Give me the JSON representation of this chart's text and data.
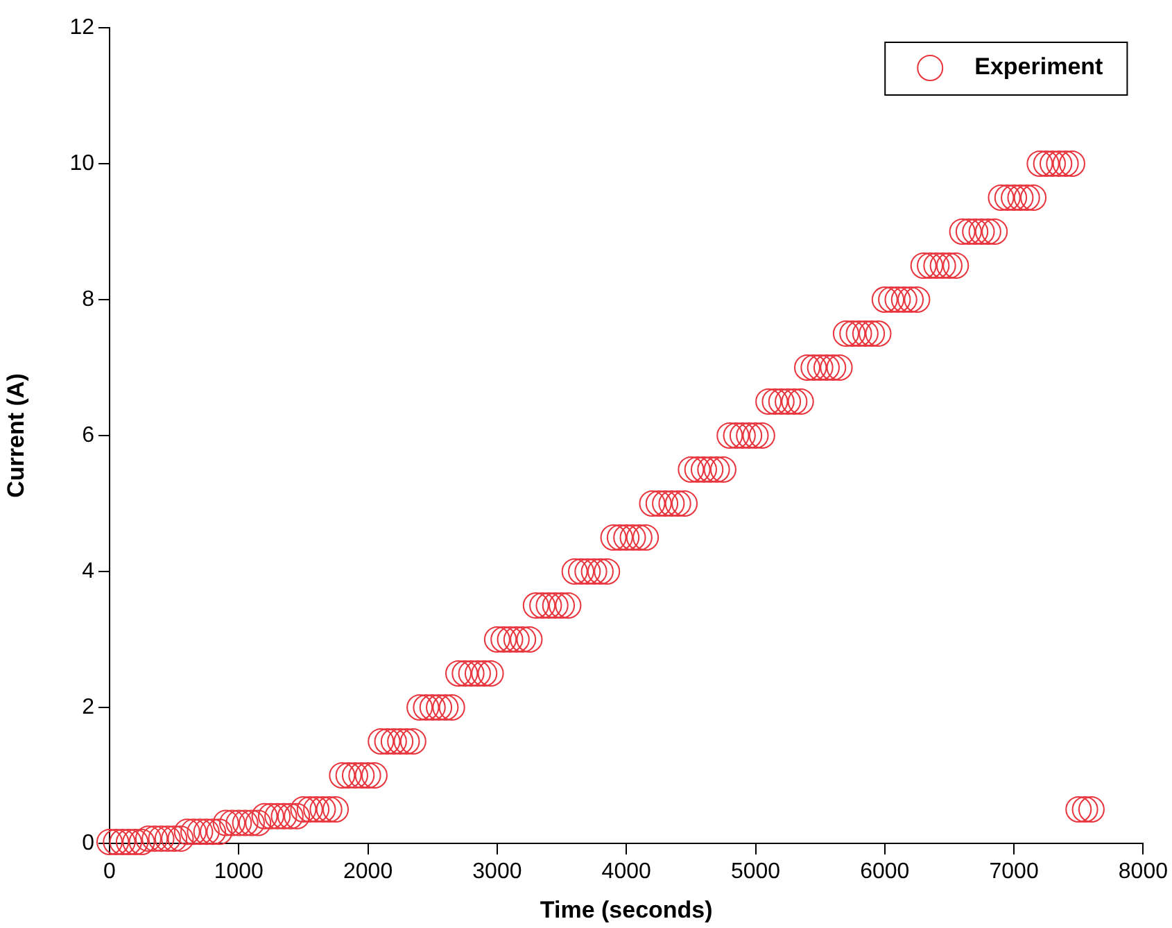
{
  "chart_data": {
    "type": "scatter",
    "xlabel": "Time (seconds)",
    "ylabel": "Current (A)",
    "xlim": [
      0,
      8000
    ],
    "xticks": [
      0,
      1000,
      2000,
      3000,
      4000,
      5000,
      6000,
      7000,
      8000
    ],
    "ylim": [
      0,
      12
    ],
    "yticks": [
      0,
      2,
      4,
      6,
      8,
      10,
      12
    ],
    "grid": false,
    "legend": "top right",
    "marker": "circle",
    "series": [
      {
        "name": "Experiment",
        "color": "#e8343c",
        "x": [
          0,
          50,
          100,
          150,
          200,
          250,
          300,
          350,
          400,
          450,
          500,
          550,
          600,
          650,
          700,
          750,
          800,
          850,
          900,
          950,
          1000,
          1050,
          1100,
          1150,
          1200,
          1250,
          1300,
          1350,
          1400,
          1450,
          1500,
          1550,
          1600,
          1650,
          1700,
          1750,
          1800,
          1850,
          1900,
          1950,
          2000,
          2050,
          2100,
          2150,
          2200,
          2250,
          2300,
          2350,
          2400,
          2450,
          2500,
          2550,
          2600,
          2650,
          2700,
          2750,
          2800,
          2850,
          2900,
          2950,
          3000,
          3050,
          3100,
          3150,
          3200,
          3250,
          3300,
          3350,
          3400,
          3450,
          3500,
          3550,
          3600,
          3650,
          3700,
          3750,
          3800,
          3850,
          3900,
          3950,
          4000,
          4050,
          4100,
          4150,
          4200,
          4250,
          4300,
          4350,
          4400,
          4450,
          4500,
          4550,
          4600,
          4650,
          4700,
          4750,
          4800,
          4850,
          4900,
          4950,
          5000,
          5050,
          5100,
          5150,
          5200,
          5250,
          5300,
          5350,
          5400,
          5450,
          5500,
          5550,
          5600,
          5650,
          5700,
          5750,
          5800,
          5850,
          5900,
          5950,
          6000,
          6050,
          6100,
          6150,
          6200,
          6250,
          6300,
          6350,
          6400,
          6450,
          6500,
          6550,
          6600,
          6650,
          6700,
          6750,
          6800,
          6850,
          6900,
          6950,
          7000,
          7050,
          7100,
          7150,
          7200,
          7250,
          7300,
          7350,
          7400,
          7450,
          7500,
          7550,
          7600
        ],
        "values": [
          0.02,
          0.02,
          0.02,
          0.02,
          0.02,
          0.02,
          0.07,
          0.07,
          0.07,
          0.07,
          0.07,
          0.07,
          0.17,
          0.17,
          0.17,
          0.17,
          0.17,
          0.17,
          0.3,
          0.3,
          0.3,
          0.3,
          0.3,
          0.3,
          0.4,
          0.4,
          0.4,
          0.4,
          0.4,
          0.4,
          0.5,
          0.5,
          0.5,
          0.5,
          0.5,
          0.5,
          1,
          1,
          1,
          1,
          1,
          1,
          1.5,
          1.5,
          1.5,
          1.5,
          1.5,
          1.5,
          2,
          2,
          2,
          2,
          2,
          2,
          2.5,
          2.5,
          2.5,
          2.5,
          2.5,
          2.5,
          3,
          3,
          3,
          3,
          3,
          3,
          3.5,
          3.5,
          3.5,
          3.5,
          3.5,
          3.5,
          4,
          4,
          4,
          4,
          4,
          4,
          4.5,
          4.5,
          4.5,
          4.5,
          4.5,
          4.5,
          5,
          5,
          5,
          5,
          5,
          5,
          5.5,
          5.5,
          5.5,
          5.5,
          5.5,
          5.5,
          6,
          6,
          6,
          6,
          6,
          6,
          6.5,
          6.5,
          6.5,
          6.5,
          6.5,
          6.5,
          7,
          7,
          7,
          7,
          7,
          7,
          7.5,
          7.5,
          7.5,
          7.5,
          7.5,
          7.5,
          8,
          8,
          8,
          8,
          8,
          8,
          8.5,
          8.5,
          8.5,
          8.5,
          8.5,
          8.5,
          9,
          9,
          9,
          9,
          9,
          9,
          9.5,
          9.5,
          9.5,
          9.5,
          9.5,
          9.5,
          10,
          10,
          10,
          10,
          10,
          10,
          0.5,
          0.5,
          0.5
        ]
      }
    ]
  }
}
